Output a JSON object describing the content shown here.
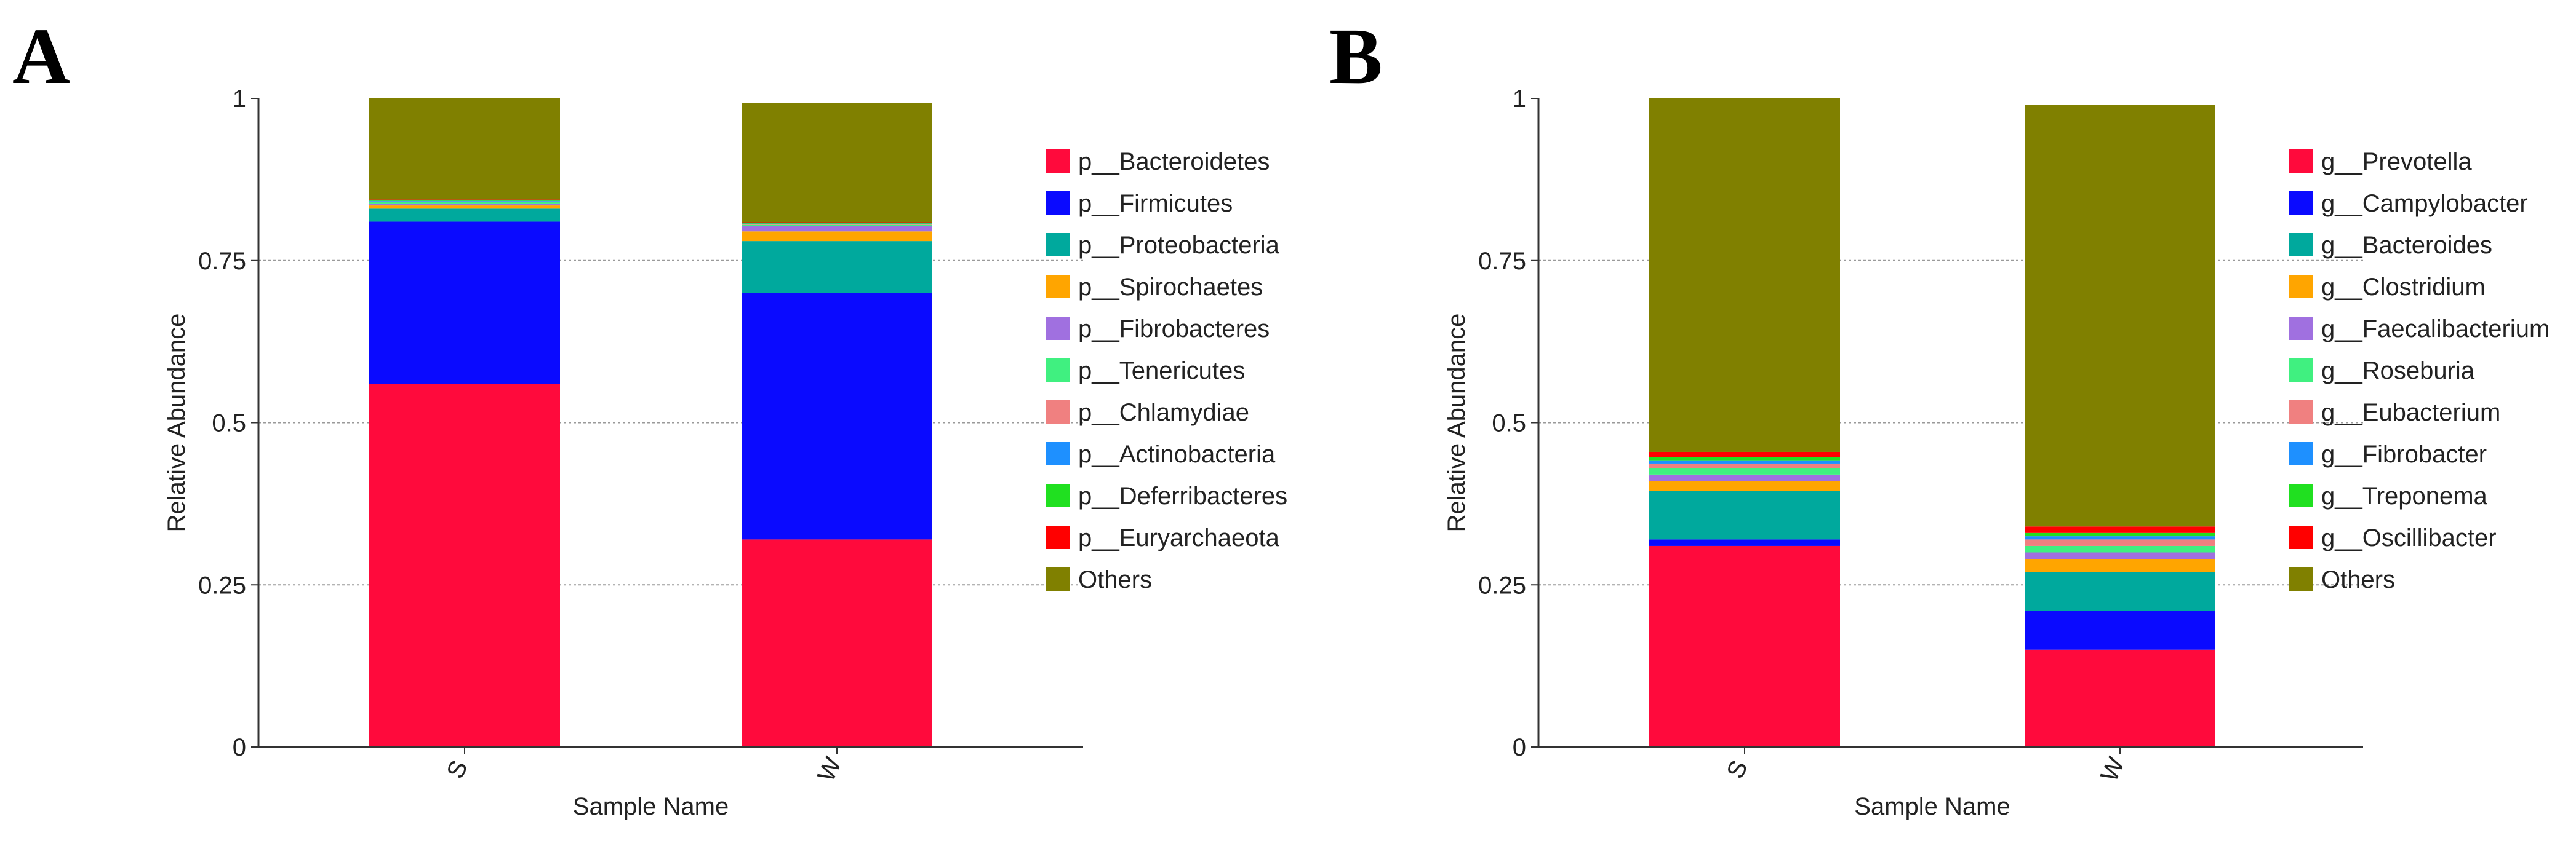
{
  "colors": {
    "Bacteroidetes": "#ff0a3c",
    "Firmicutes": "#0a0aff",
    "Proteobacteria": "#00a99d",
    "Spirochaetes": "#ffa500",
    "Fibrobacteres": "#a070e0",
    "Tenericutes": "#40f080",
    "Chlamydiae": "#f08080",
    "Actinobacteria": "#1e90ff",
    "Deferribacteres": "#20e020",
    "Euryarchaeota": "#ff0000",
    "Others": "#808000"
  },
  "chart_data": [
    {
      "type": "bar",
      "stacked": true,
      "panel_label": "A",
      "xlabel": "Sample Name",
      "ylabel": "Relative Abundance",
      "ylim": [
        0,
        1
      ],
      "yticks": [
        "0",
        "0.25",
        "0.5",
        "0.75",
        "1"
      ],
      "grid": true,
      "legend_position": "right",
      "categories": [
        "S",
        "W"
      ],
      "series": [
        {
          "name": "p__Bacteroidetes",
          "color": "#ff0a3c",
          "values": [
            0.56,
            0.32
          ]
        },
        {
          "name": "p__Firmicutes",
          "color": "#0a0aff",
          "values": [
            0.25,
            0.38
          ]
        },
        {
          "name": "p__Proteobacteria",
          "color": "#00a99d",
          "values": [
            0.02,
            0.08
          ]
        },
        {
          "name": "p__Spirochaetes",
          "color": "#ffa500",
          "values": [
            0.005,
            0.015
          ]
        },
        {
          "name": "p__Fibrobacteres",
          "color": "#a070e0",
          "values": [
            0.003,
            0.008
          ]
        },
        {
          "name": "p__Tenericutes",
          "color": "#40f080",
          "values": [
            0.002,
            0.002
          ]
        },
        {
          "name": "p__Chlamydiae",
          "color": "#f08080",
          "values": [
            0.001,
            0.001
          ]
        },
        {
          "name": "p__Actinobacteria",
          "color": "#1e90ff",
          "values": [
            0.001,
            0.001
          ]
        },
        {
          "name": "p__Deferribacteres",
          "color": "#20e020",
          "values": [
            0.001,
            0.001
          ]
        },
        {
          "name": "p__Euryarchaeota",
          "color": "#ff0000",
          "values": [
            0.001,
            0.001
          ]
        },
        {
          "name": "Others",
          "color": "#808000",
          "values": [
            0.156,
            0.184
          ]
        }
      ]
    },
    {
      "type": "bar",
      "stacked": true,
      "panel_label": "B",
      "xlabel": "Sample Name",
      "ylabel": "Relative Abundance",
      "ylim": [
        0,
        1
      ],
      "yticks": [
        "0",
        "0.25",
        "0.5",
        "0.75",
        "1"
      ],
      "grid": true,
      "legend_position": "right",
      "categories": [
        "S",
        "W"
      ],
      "series": [
        {
          "name": "g__Prevotella",
          "color": "#ff0a3c",
          "values": [
            0.31,
            0.15
          ]
        },
        {
          "name": "g__Campylobacter",
          "color": "#0a0aff",
          "values": [
            0.01,
            0.06
          ]
        },
        {
          "name": "g__Bacteroides",
          "color": "#00a99d",
          "values": [
            0.075,
            0.06
          ]
        },
        {
          "name": "g__Clostridium",
          "color": "#ffa500",
          "values": [
            0.015,
            0.02
          ]
        },
        {
          "name": "g__Faecalibacterium",
          "color": "#a070e0",
          "values": [
            0.01,
            0.01
          ]
        },
        {
          "name": "g__Roseburia",
          "color": "#40f080",
          "values": [
            0.01,
            0.01
          ]
        },
        {
          "name": "g__Eubacterium",
          "color": "#f08080",
          "values": [
            0.007,
            0.01
          ]
        },
        {
          "name": "g__Fibrobacter",
          "color": "#1e90ff",
          "values": [
            0.005,
            0.005
          ]
        },
        {
          "name": "g__Treponema",
          "color": "#20e020",
          "values": [
            0.005,
            0.005
          ]
        },
        {
          "name": "g__Oscillibacter",
          "color": "#ff0000",
          "values": [
            0.008,
            0.01
          ]
        },
        {
          "name": "Others",
          "color": "#808000",
          "values": [
            0.545,
            0.65
          ]
        }
      ]
    }
  ]
}
